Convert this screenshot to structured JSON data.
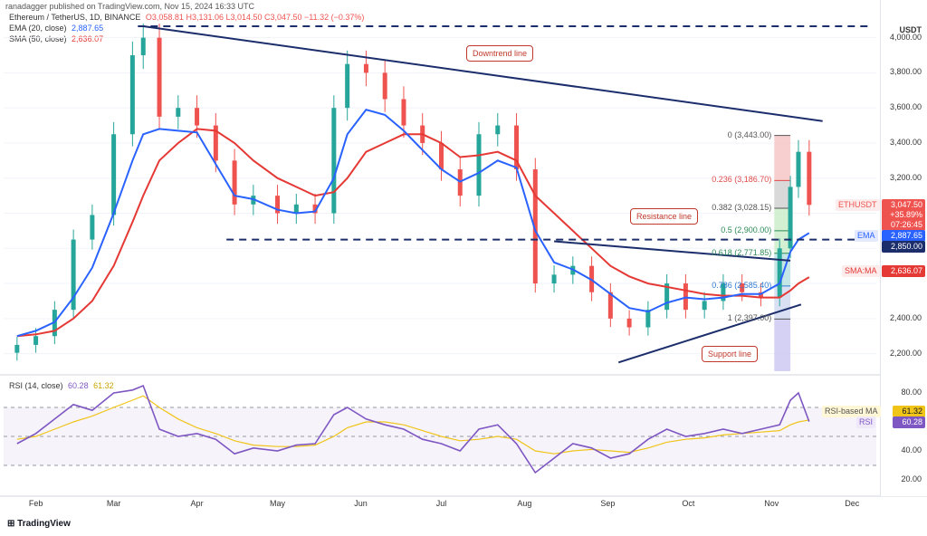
{
  "header": {
    "text": "ranadagger published on TradingView.com, Nov 15, 2024 16:33 UTC"
  },
  "legend": {
    "symbol": "Ethereum / TetherUS, 1D, BINANCE",
    "ohlc": "O3,058.81 H3,131.06 L3,014.50 C3,047.50 −11.32 (−0.37%)",
    "ema_label": "EMA (20, close)",
    "ema_value": "2,887.65",
    "sma_label": "SMA (50, close)",
    "sma_value": "2,636.07",
    "rsi_label": "RSI (14, close)",
    "rsi_value": "60.28",
    "rsi_extra": "61.32"
  },
  "axis": {
    "currency": "USDT",
    "price_ticks": [
      "4,000.00",
      "3,800.00",
      "3,600.00",
      "3,400.00",
      "3,200.00",
      "2,400.00",
      "2,200.00"
    ],
    "rsi_ticks": [
      "80.00",
      "40.00",
      "20.00"
    ],
    "x_ticks": [
      "Feb",
      "Mar",
      "Apr",
      "May",
      "Jun",
      "Jul",
      "Aug",
      "Sep",
      "Oct",
      "Nov",
      "Dec"
    ]
  },
  "price_tags": {
    "symbol": "ETHUSDT",
    "last": "3,047.50",
    "change": "+35.89%",
    "countdown": "07:26:45",
    "ema_name": "EMA",
    "ema": "2,887.65",
    "level": "2,850.00",
    "sma_name": "SMA:MA",
    "sma": "2,636.07",
    "rsi_ma_name": "RSI-based MA",
    "rsi_ma": "61.32",
    "rsi_name": "RSI",
    "rsi": "60.28"
  },
  "annotations": {
    "downtrend": "Downtrend line",
    "resistance": "Resistance line",
    "support": "Support line"
  },
  "fib_levels": [
    {
      "label": "0 (3,443.00)",
      "price": 3443,
      "color": "#555555"
    },
    {
      "label": "0.236 (3,186.70)",
      "price": 3186.7,
      "color": "#e04a4a"
    },
    {
      "label": "0.382 (3,028.15)",
      "price": 3028.15,
      "color": "#555555"
    },
    {
      "label": "0.5 (2,900.00)",
      "price": 2900,
      "color": "#2e8b57"
    },
    {
      "label": "0.618 (2,771.85)",
      "price": 2771.85,
      "color": "#2e8b57"
    },
    {
      "label": "0.786 (2,585.40)",
      "price": 2585.4,
      "color": "#2c7bd1"
    },
    {
      "label": "1 (2,397.00)",
      "price": 2397,
      "color": "#555555"
    }
  ],
  "footer": {
    "brand": "TradingView"
  },
  "colors": {
    "up": "#26a69a",
    "down": "#ef5350",
    "ema": "#2962ff",
    "sma": "#e53935",
    "trend": "#1c2d6b",
    "rsi": "#7e57c2",
    "rsi_ma": "#f0c419"
  },
  "chart_data": {
    "type": "candlestick",
    "ylim": [
      2100,
      4060
    ],
    "x": [
      "2024-01-25",
      "2024-02-01",
      "2024-02-08",
      "2024-02-15",
      "2024-02-22",
      "2024-03-01",
      "2024-03-08",
      "2024-03-12",
      "2024-03-18",
      "2024-03-25",
      "2024-04-01",
      "2024-04-08",
      "2024-04-15",
      "2024-04-22",
      "2024-05-01",
      "2024-05-08",
      "2024-05-15",
      "2024-05-22",
      "2024-05-27",
      "2024-06-03",
      "2024-06-10",
      "2024-06-17",
      "2024-06-24",
      "2024-07-01",
      "2024-07-08",
      "2024-07-15",
      "2024-07-22",
      "2024-07-29",
      "2024-08-05",
      "2024-08-12",
      "2024-08-19",
      "2024-08-26",
      "2024-09-02",
      "2024-09-09",
      "2024-09-16",
      "2024-09-23",
      "2024-09-30",
      "2024-10-07",
      "2024-10-14",
      "2024-10-21",
      "2024-10-28",
      "2024-11-04",
      "2024-11-08",
      "2024-11-11",
      "2024-11-15"
    ],
    "close": [
      2250,
      2300,
      2450,
      2850,
      2990,
      3450,
      3900,
      4000,
      3550,
      3600,
      3500,
      3300,
      3050,
      3100,
      3000,
      3050,
      3000,
      3600,
      3850,
      3800,
      3650,
      3500,
      3400,
      3250,
      3100,
      3450,
      3500,
      3250,
      2600,
      2650,
      2700,
      2550,
      2400,
      2350,
      2450,
      2600,
      2450,
      2500,
      2600,
      2550,
      2520,
      2800,
      3150,
      3350,
      3047.5
    ],
    "ema20": [
      2300,
      2330,
      2380,
      2520,
      2690,
      3000,
      3300,
      3450,
      3480,
      3470,
      3460,
      3280,
      3100,
      3080,
      3020,
      3000,
      3010,
      3200,
      3450,
      3590,
      3560,
      3470,
      3360,
      3250,
      3180,
      3230,
      3300,
      3260,
      2900,
      2720,
      2680,
      2620,
      2540,
      2460,
      2440,
      2490,
      2520,
      2510,
      2520,
      2540,
      2540,
      2600,
      2780,
      2850,
      2887.65
    ],
    "sma50": [
      2300,
      2310,
      2330,
      2400,
      2500,
      2700,
      2950,
      3100,
      3300,
      3400,
      3480,
      3470,
      3400,
      3300,
      3200,
      3150,
      3100,
      3120,
      3200,
      3350,
      3400,
      3450,
      3450,
      3400,
      3320,
      3330,
      3350,
      3300,
      3100,
      3000,
      2900,
      2800,
      2700,
      2640,
      2600,
      2580,
      2560,
      2540,
      2530,
      2530,
      2520,
      2520,
      2560,
      2600,
      2636.07
    ],
    "rsi": [
      45,
      52,
      62,
      72,
      68,
      80,
      82,
      85,
      55,
      50,
      52,
      48,
      38,
      42,
      40,
      44,
      45,
      65,
      70,
      62,
      58,
      55,
      48,
      45,
      40,
      55,
      58,
      45,
      25,
      35,
      45,
      42,
      35,
      38,
      48,
      55,
      50,
      52,
      55,
      52,
      55,
      58,
      75,
      80,
      60.28
    ],
    "rsi_ma": [
      48,
      50,
      55,
      60,
      64,
      70,
      75,
      78,
      70,
      62,
      56,
      52,
      47,
      44,
      43,
      43,
      44,
      50,
      56,
      60,
      60,
      58,
      54,
      50,
      47,
      48,
      50,
      48,
      40,
      38,
      40,
      41,
      40,
      39,
      42,
      46,
      48,
      49,
      51,
      52,
      53,
      54,
      58,
      60,
      61.32
    ]
  }
}
